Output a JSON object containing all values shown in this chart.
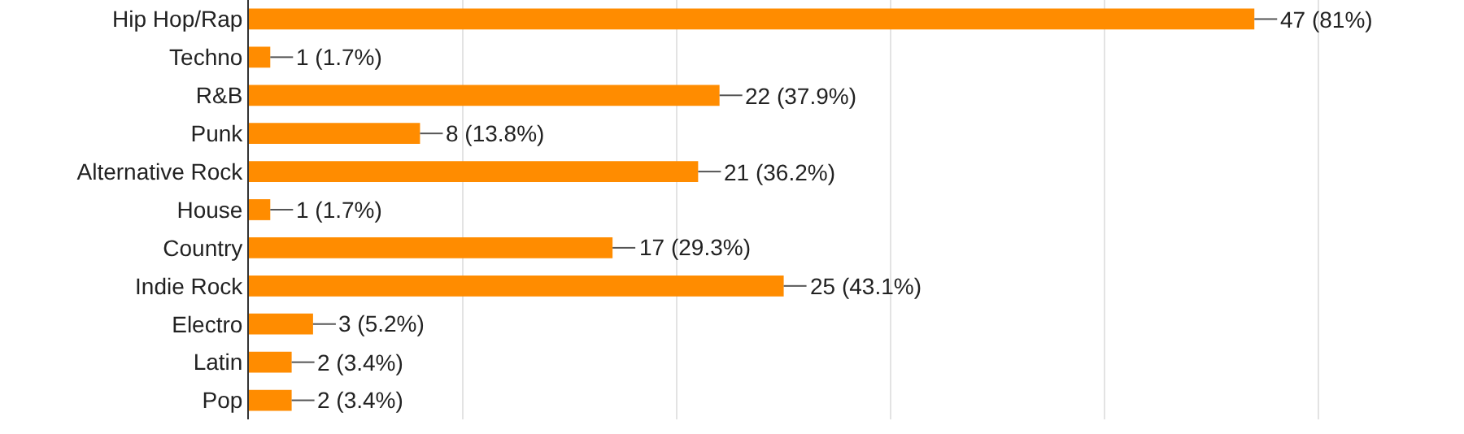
{
  "chart_data": {
    "type": "bar",
    "orientation": "horizontal",
    "categories": [
      "Hip Hop/Rap",
      "Techno",
      "R&B",
      "Punk",
      "Alternative Rock",
      "House",
      "Country",
      "Indie Rock",
      "Electro",
      "Latin",
      "Pop"
    ],
    "values": [
      47,
      1,
      22,
      8,
      21,
      1,
      17,
      25,
      3,
      2,
      2
    ],
    "value_labels": [
      "47 (81%)",
      "1 (1.7%)",
      "22 (37.9%)",
      "8 (13.8%)",
      "21 (36.2%)",
      "1 (1.7%)",
      "17 (29.3%)",
      "25 (43.1%)",
      "3 (5.2%)",
      "2 (3.4%)",
      "2 (3.4%)"
    ],
    "color": "#ff8c00",
    "xlim": [
      0,
      56.8
    ],
    "xticks": [
      {
        "value": 0,
        "label": null
      },
      {
        "value": 10,
        "label": null
      },
      {
        "value": 20,
        "label": null
      },
      {
        "value": 30,
        "label": null
      },
      {
        "value": 40,
        "label": null
      },
      {
        "value": 50,
        "label": null
      }
    ],
    "tick_labels": "y",
    "grid": "x",
    "legend": false
  }
}
